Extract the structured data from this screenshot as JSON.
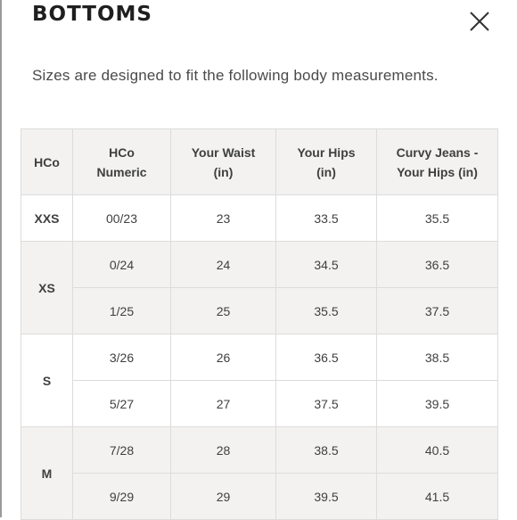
{
  "title": "BOTTOMS",
  "subtitle": "Sizes are designed to fit the following body measurements.",
  "icons": {
    "close": "close-icon"
  },
  "table": {
    "headers": {
      "size": "HCo",
      "numeric_line1": "HCo",
      "numeric_line2": "Numeric",
      "waist_line1": "Your Waist",
      "waist_line2": "(in)",
      "hips_line1": "Your Hips",
      "hips_line2": "(in)",
      "curvy_line1": "Curvy Jeans -",
      "curvy_line2": "Your Hips (in)"
    },
    "groups": [
      {
        "size": "XXS",
        "rows": [
          {
            "numeric": "00/23",
            "waist": "23",
            "hips": "33.5",
            "curvy": "35.5"
          }
        ]
      },
      {
        "size": "XS",
        "rows": [
          {
            "numeric": "0/24",
            "waist": "24",
            "hips": "34.5",
            "curvy": "36.5"
          },
          {
            "numeric": "1/25",
            "waist": "25",
            "hips": "35.5",
            "curvy": "37.5"
          }
        ]
      },
      {
        "size": "S",
        "rows": [
          {
            "numeric": "3/26",
            "waist": "26",
            "hips": "36.5",
            "curvy": "38.5"
          },
          {
            "numeric": "5/27",
            "waist": "27",
            "hips": "37.5",
            "curvy": "39.5"
          }
        ]
      },
      {
        "size": "M",
        "rows": [
          {
            "numeric": "7/28",
            "waist": "28",
            "hips": "38.5",
            "curvy": "40.5"
          },
          {
            "numeric": "9/29",
            "waist": "29",
            "hips": "39.5",
            "curvy": "41.5"
          }
        ]
      }
    ]
  }
}
